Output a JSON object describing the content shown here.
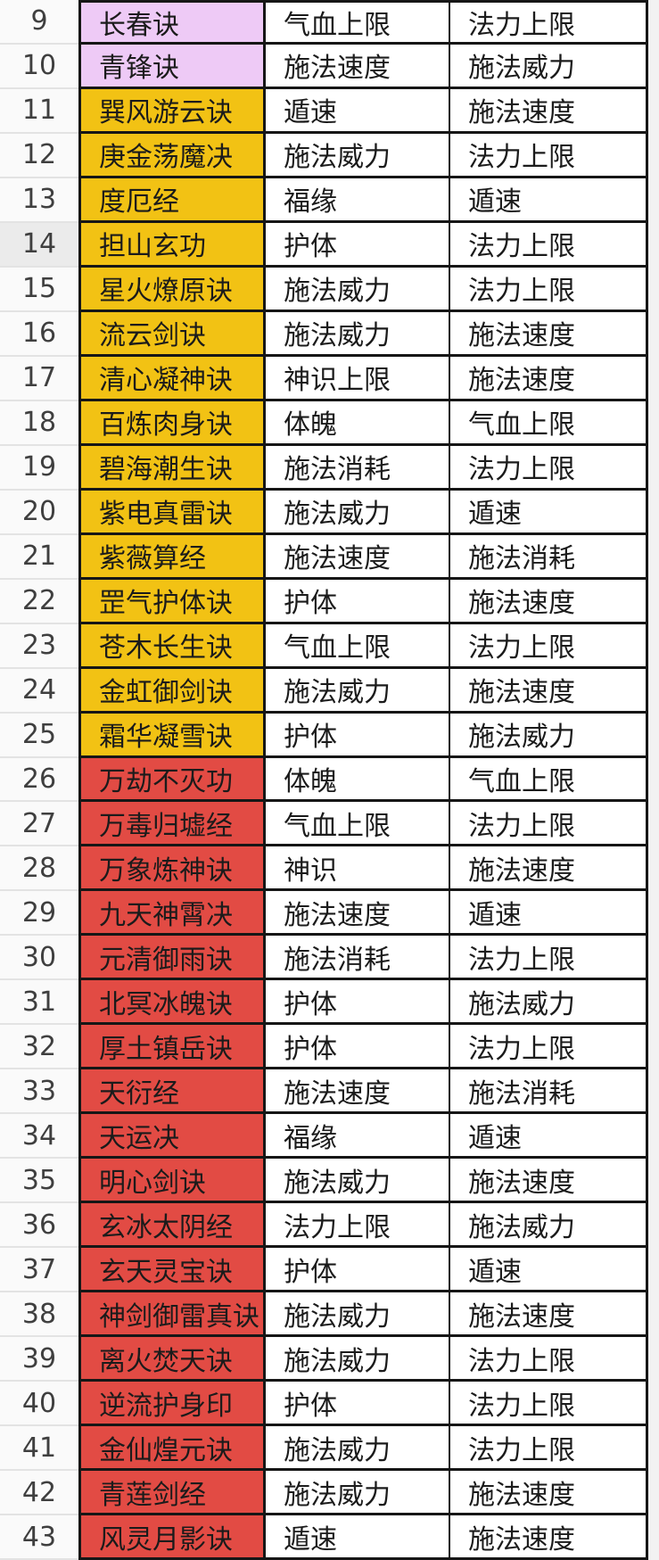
{
  "colors": {
    "tier_purple": "#eecaf6",
    "tier_gold": "#f2c214",
    "tier_red": "#e24b44"
  },
  "highlighted_row_number": "14",
  "rows": [
    {
      "num": "9",
      "name": "长春诀",
      "tier": "purple",
      "stat1": "气血上限",
      "stat2": "法力上限"
    },
    {
      "num": "10",
      "name": "青锋诀",
      "tier": "purple",
      "stat1": "施法速度",
      "stat2": "施法威力"
    },
    {
      "num": "11",
      "name": "巽风游云诀",
      "tier": "gold",
      "stat1": "遁速",
      "stat2": "施法速度"
    },
    {
      "num": "12",
      "name": "庚金荡魔决",
      "tier": "gold",
      "stat1": "施法威力",
      "stat2": "法力上限"
    },
    {
      "num": "13",
      "name": "度厄经",
      "tier": "gold",
      "stat1": "福缘",
      "stat2": "遁速"
    },
    {
      "num": "14",
      "name": "担山玄功",
      "tier": "gold",
      "stat1": "护体",
      "stat2": "法力上限"
    },
    {
      "num": "15",
      "name": "星火燎原诀",
      "tier": "gold",
      "stat1": "施法威力",
      "stat2": "法力上限"
    },
    {
      "num": "16",
      "name": "流云剑诀",
      "tier": "gold",
      "stat1": "施法威力",
      "stat2": "施法速度"
    },
    {
      "num": "17",
      "name": "清心凝神诀",
      "tier": "gold",
      "stat1": "神识上限",
      "stat2": "施法速度"
    },
    {
      "num": "18",
      "name": "百炼肉身诀",
      "tier": "gold",
      "stat1": "体魄",
      "stat2": "气血上限"
    },
    {
      "num": "19",
      "name": "碧海潮生诀",
      "tier": "gold",
      "stat1": "施法消耗",
      "stat2": "法力上限"
    },
    {
      "num": "20",
      "name": "紫电真雷诀",
      "tier": "gold",
      "stat1": "施法威力",
      "stat2": "遁速"
    },
    {
      "num": "21",
      "name": "紫薇算经",
      "tier": "gold",
      "stat1": "施法速度",
      "stat2": "施法消耗"
    },
    {
      "num": "22",
      "name": "罡气护体诀",
      "tier": "gold",
      "stat1": "护体",
      "stat2": "施法速度"
    },
    {
      "num": "23",
      "name": "苍木长生诀",
      "tier": "gold",
      "stat1": "气血上限",
      "stat2": "法力上限"
    },
    {
      "num": "24",
      "name": "金虹御剑诀",
      "tier": "gold",
      "stat1": "施法威力",
      "stat2": "施法速度"
    },
    {
      "num": "25",
      "name": "霜华凝雪诀",
      "tier": "gold",
      "stat1": "护体",
      "stat2": "施法威力"
    },
    {
      "num": "26",
      "name": "万劫不灭功",
      "tier": "red",
      "stat1": "体魄",
      "stat2": "气血上限"
    },
    {
      "num": "27",
      "name": "万毒归墟经",
      "tier": "red",
      "stat1": "气血上限",
      "stat2": "法力上限"
    },
    {
      "num": "28",
      "name": "万象炼神诀",
      "tier": "red",
      "stat1": "神识",
      "stat2": "施法速度"
    },
    {
      "num": "29",
      "name": "九天神霄决",
      "tier": "red",
      "stat1": "施法速度",
      "stat2": "遁速"
    },
    {
      "num": "30",
      "name": "元清御雨诀",
      "tier": "red",
      "stat1": "施法消耗",
      "stat2": "法力上限"
    },
    {
      "num": "31",
      "name": "北冥冰魄诀",
      "tier": "red",
      "stat1": "护体",
      "stat2": "施法威力"
    },
    {
      "num": "32",
      "name": "厚土镇岳诀",
      "tier": "red",
      "stat1": "护体",
      "stat2": "法力上限"
    },
    {
      "num": "33",
      "name": "天衍经",
      "tier": "red",
      "stat1": "施法速度",
      "stat2": "施法消耗"
    },
    {
      "num": "34",
      "name": "天运决",
      "tier": "red",
      "stat1": "福缘",
      "stat2": "遁速"
    },
    {
      "num": "35",
      "name": "明心剑诀",
      "tier": "red",
      "stat1": "施法威力",
      "stat2": "施法速度"
    },
    {
      "num": "36",
      "name": "玄冰太阴经",
      "tier": "red",
      "stat1": "法力上限",
      "stat2": "施法威力"
    },
    {
      "num": "37",
      "name": "玄天灵宝诀",
      "tier": "red",
      "stat1": "护体",
      "stat2": "遁速"
    },
    {
      "num": "38",
      "name": "神剑御雷真诀",
      "tier": "red",
      "stat1": "施法威力",
      "stat2": "施法速度"
    },
    {
      "num": "39",
      "name": "离火焚天诀",
      "tier": "red",
      "stat1": "施法威力",
      "stat2": "法力上限"
    },
    {
      "num": "40",
      "name": "逆流护身印",
      "tier": "red",
      "stat1": "护体",
      "stat2": "法力上限"
    },
    {
      "num": "41",
      "name": "金仙煌元诀",
      "tier": "red",
      "stat1": "施法威力",
      "stat2": "法力上限"
    },
    {
      "num": "42",
      "name": "青莲剑经",
      "tier": "red",
      "stat1": "施法威力",
      "stat2": "施法速度"
    },
    {
      "num": "43",
      "name": "风灵月影诀",
      "tier": "red",
      "stat1": "遁速",
      "stat2": "施法速度"
    }
  ]
}
